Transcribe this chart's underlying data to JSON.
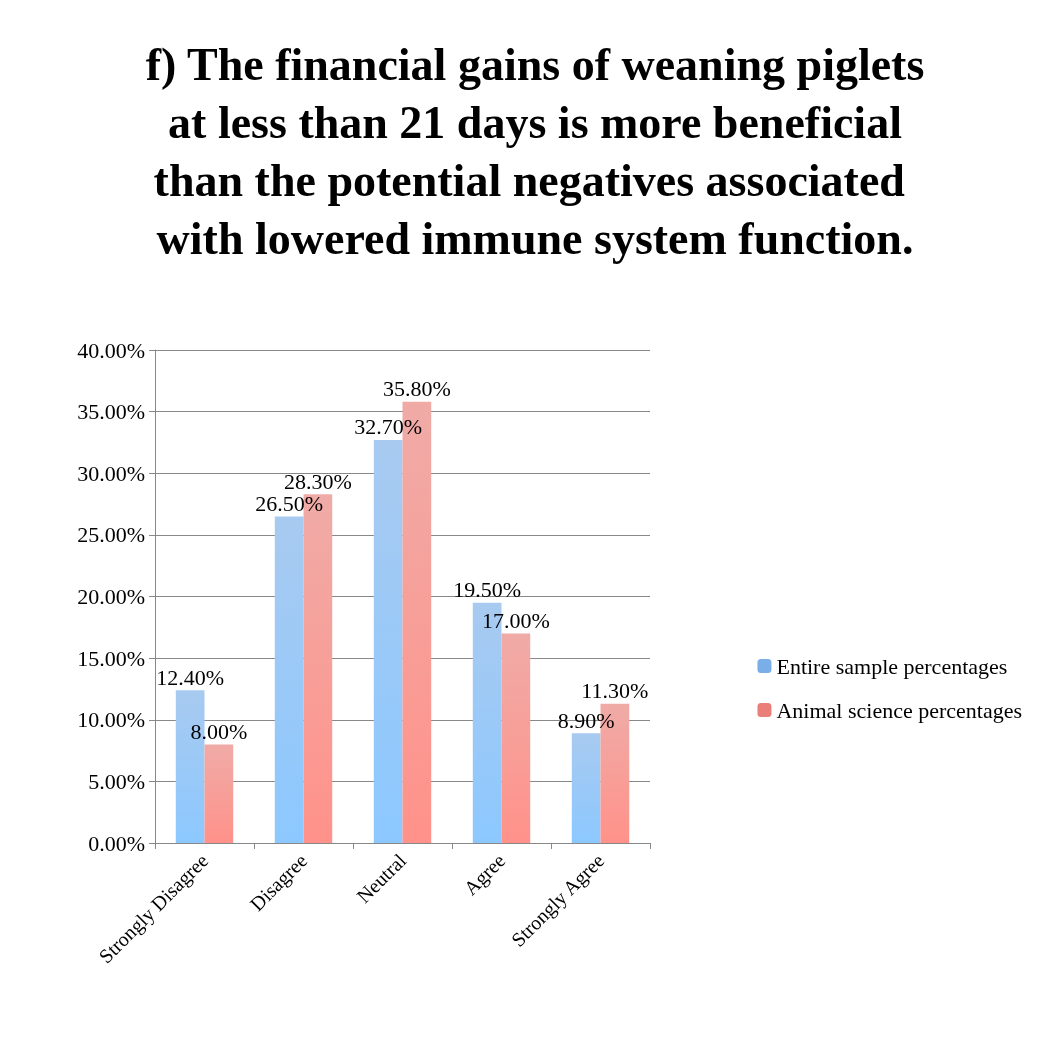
{
  "chart_data": {
    "type": "bar",
    "title": "f) The financial gains of weaning piglets at less than 21 days is more beneficial than the potential negatives associated with lowered immune system function.",
    "categories": [
      "Strongly Disagree",
      "Disagree",
      "Neutral",
      "Agree",
      "Strongly Agree"
    ],
    "series": [
      {
        "name": "Entire sample percentages",
        "color": "#7aaee8",
        "values": [
          12.4,
          26.5,
          32.7,
          19.5,
          8.9
        ],
        "value_labels": [
          "12.40%",
          "26.50%",
          "32.70%",
          "19.50%",
          "8.90%"
        ]
      },
      {
        "name": "Animal science percentages",
        "color": "#e97f78",
        "values": [
          8.0,
          28.3,
          35.8,
          17.0,
          11.3
        ],
        "value_labels": [
          "8.00%",
          "28.30%",
          "35.80%",
          "17.00%",
          "11.30%"
        ]
      }
    ],
    "ylim": [
      0,
      40
    ],
    "yticks": [
      {
        "value": 0,
        "label": "0.00%"
      },
      {
        "value": 5,
        "label": "5.00%"
      },
      {
        "value": 10,
        "label": "10.00%"
      },
      {
        "value": 15,
        "label": "15.00%"
      },
      {
        "value": 20,
        "label": "20.00%"
      },
      {
        "value": 25,
        "label": "25.00%"
      },
      {
        "value": 30,
        "label": "30.00%"
      },
      {
        "value": 35,
        "label": "35.00%"
      },
      {
        "value": 40,
        "label": "40.00%"
      }
    ],
    "grid": "y",
    "legend": "right"
  }
}
